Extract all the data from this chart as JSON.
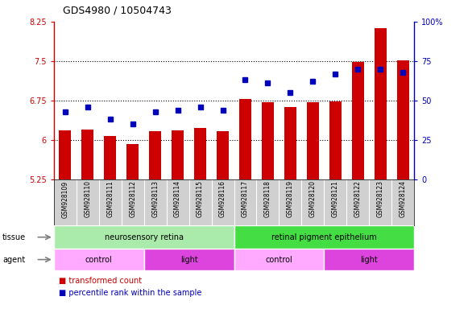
{
  "title": "GDS4980 / 10504743",
  "samples": [
    "GSM928109",
    "GSM928110",
    "GSM928111",
    "GSM928112",
    "GSM928113",
    "GSM928114",
    "GSM928115",
    "GSM928116",
    "GSM928117",
    "GSM928118",
    "GSM928119",
    "GSM928120",
    "GSM928121",
    "GSM928122",
    "GSM928123",
    "GSM928124"
  ],
  "bar_values": [
    6.18,
    6.2,
    6.08,
    5.92,
    6.17,
    6.18,
    6.22,
    6.17,
    6.78,
    6.72,
    6.63,
    6.72,
    6.73,
    7.48,
    8.12,
    7.52
  ],
  "dot_values": [
    43,
    46,
    38,
    35,
    43,
    44,
    46,
    44,
    63,
    61,
    55,
    62,
    67,
    70,
    70,
    68
  ],
  "ylim_left": [
    5.25,
    8.25
  ],
  "ylim_right": [
    0,
    100
  ],
  "yticks_left": [
    5.25,
    6.0,
    6.75,
    7.5,
    8.25
  ],
  "yticks_right": [
    0,
    25,
    50,
    75,
    100
  ],
  "ytick_labels_left": [
    "5.25",
    "6",
    "6.75",
    "7.5",
    "8.25"
  ],
  "ytick_labels_right": [
    "0",
    "25",
    "50",
    "75",
    "100%"
  ],
  "bar_color": "#CC0000",
  "dot_color": "#0000BB",
  "bar_bottom": 5.25,
  "grid_yticks": [
    6.0,
    6.75,
    7.5
  ],
  "tissue_groups": [
    {
      "label": "neurosensory retina",
      "start": 0,
      "end": 8,
      "color": "#AAEAAA"
    },
    {
      "label": "retinal pigment epithelium",
      "start": 8,
      "end": 16,
      "color": "#44DD44"
    }
  ],
  "agent_groups": [
    {
      "label": "control",
      "start": 0,
      "end": 4,
      "color": "#FFAAFF"
    },
    {
      "label": "light",
      "start": 4,
      "end": 8,
      "color": "#DD44DD"
    },
    {
      "label": "control",
      "start": 8,
      "end": 12,
      "color": "#FFAAFF"
    },
    {
      "label": "light",
      "start": 12,
      "end": 16,
      "color": "#DD44DD"
    }
  ],
  "legend_items": [
    {
      "label": "transformed count",
      "color": "#CC0000"
    },
    {
      "label": "percentile rank within the sample",
      "color": "#0000BB"
    }
  ],
  "fig_width": 5.81,
  "fig_height": 3.84,
  "dpi": 100,
  "left_label": "tissue",
  "agent_label": "agent",
  "title_fontsize": 9,
  "tick_fontsize": 7,
  "label_fontsize": 7,
  "legend_fontsize": 7
}
